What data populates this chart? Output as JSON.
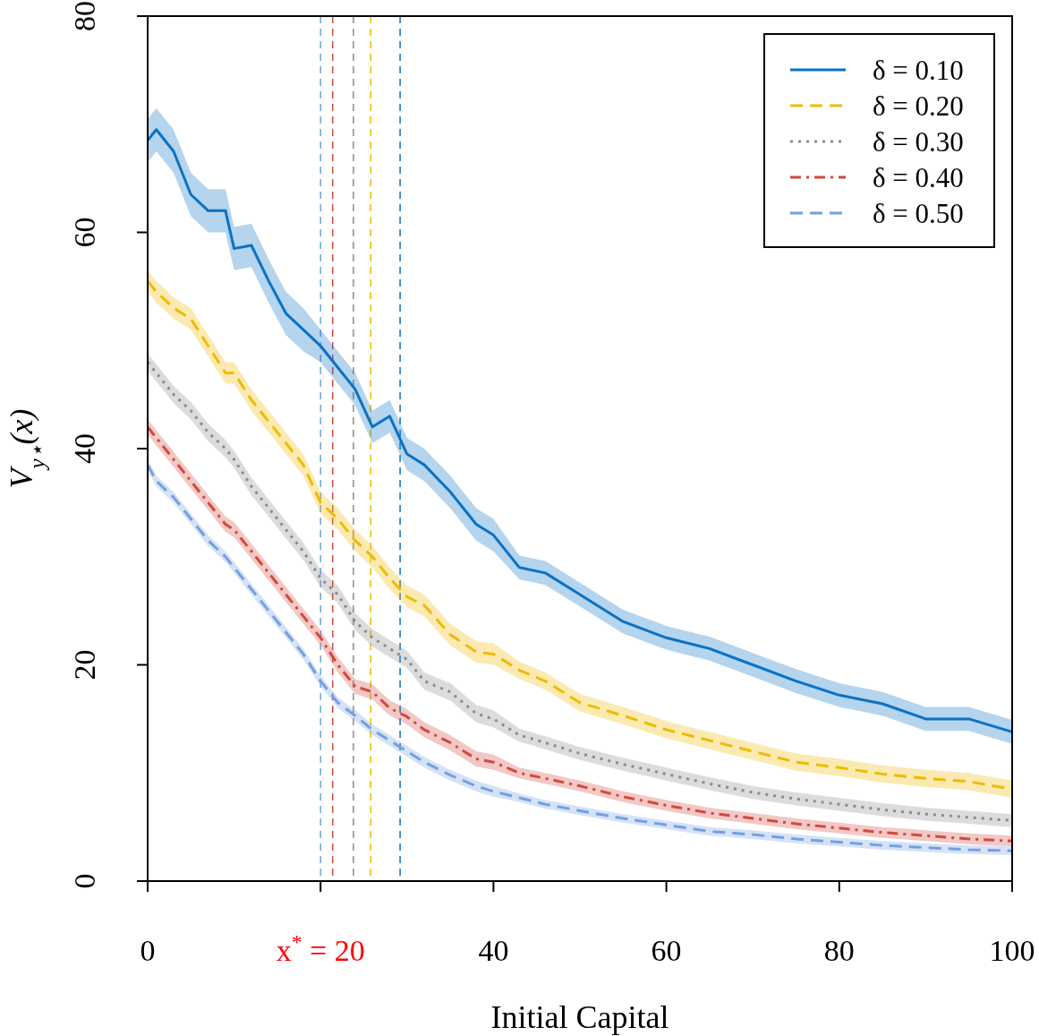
{
  "chart_data": {
    "type": "line",
    "xlabel": "Initial Capital",
    "ylabel": "V$_{y⋆}$(x)",
    "x": [
      0,
      1,
      3,
      5,
      7,
      9,
      10,
      12,
      14,
      16,
      18,
      20,
      22,
      24,
      26,
      28,
      30,
      32,
      35,
      38,
      40,
      43,
      46,
      50,
      55,
      60,
      65,
      70,
      75,
      80,
      85,
      90,
      95,
      100
    ],
    "xlim": [
      0,
      100
    ],
    "xticks": [
      0,
      {
        "value": 20,
        "label": "x$^{*}$ = 20"
      },
      40,
      60,
      80,
      100
    ],
    "ylim": [
      0,
      80
    ],
    "yticks": [
      0,
      20,
      40,
      60,
      80
    ],
    "legend": "top right",
    "grid": false,
    "series": [
      {
        "name": "δ = 0.10",
        "color": "#0a72c4",
        "line_style": "solid",
        "values": [
          68.5,
          69.5,
          67.5,
          63.5,
          62,
          62,
          58.5,
          58.8,
          55.5,
          52.5,
          51,
          49.5,
          47.5,
          45.5,
          42,
          43,
          39.5,
          38.5,
          36,
          33,
          32,
          29,
          28.5,
          26.5,
          24,
          22.5,
          21.5,
          20,
          18.5,
          17.2,
          16.4,
          15,
          15,
          13.8
        ],
        "lower": [
          66.5,
          67.5,
          65.5,
          61.5,
          60,
          60,
          56.5,
          56.8,
          53.5,
          50.5,
          49,
          48,
          46,
          44,
          40.5,
          41.5,
          38,
          37,
          34.5,
          31.5,
          30.5,
          27.9,
          27.4,
          25.4,
          22.9,
          21.4,
          20.4,
          18.9,
          17.4,
          16.1,
          15.3,
          13.9,
          13.9,
          12.7
        ],
        "upper": [
          70.5,
          71.5,
          69.5,
          65.5,
          64,
          64,
          60.5,
          60.8,
          57.5,
          54.5,
          53,
          51,
          49,
          47,
          43.5,
          44.5,
          41,
          40,
          37.5,
          34.5,
          33.5,
          30.1,
          29.6,
          27.6,
          25.1,
          23.6,
          22.6,
          21.1,
          19.6,
          18.3,
          17.5,
          16.1,
          16.1,
          14.9
        ]
      },
      {
        "name": "δ = 0.20",
        "color": "#eebb00",
        "line_style": "dashed",
        "values": [
          55.5,
          54.5,
          53,
          52,
          49.5,
          47,
          47,
          44.5,
          42.5,
          40.5,
          38.5,
          35,
          33.5,
          31.5,
          30,
          28,
          26.3,
          25.5,
          22.8,
          21.2,
          21,
          19.5,
          18.5,
          16.5,
          15.3,
          14,
          13,
          12,
          11,
          10.5,
          9.9,
          9.5,
          9.2,
          8.5
        ],
        "lower": [
          54.5,
          53.5,
          52,
          51,
          48.5,
          46,
          46,
          43.5,
          41.5,
          39.5,
          37.5,
          34,
          32.5,
          30.5,
          29,
          27,
          25.3,
          24.5,
          21.8,
          20.2,
          20,
          18.7,
          17.7,
          15.7,
          14.5,
          13.2,
          12.2,
          11.2,
          10.2,
          9.7,
          9.1,
          8.7,
          8.4,
          7.7
        ],
        "upper": [
          56.5,
          55.5,
          54,
          53,
          50.5,
          48,
          48,
          45.5,
          43.5,
          41.5,
          39.5,
          36,
          34.5,
          32.5,
          31,
          29,
          27.3,
          26.5,
          23.8,
          22.2,
          22,
          20.3,
          19.3,
          17.3,
          16.1,
          14.8,
          13.8,
          12.8,
          11.8,
          11.3,
          10.7,
          10.3,
          10,
          9.3
        ]
      },
      {
        "name": "δ = 0.30",
        "color": "#8c8c8c",
        "line_style": "dotted",
        "values": [
          48,
          47,
          45,
          43.5,
          41.5,
          40,
          39,
          36.5,
          34.5,
          32.5,
          30.5,
          28,
          26.5,
          24,
          22.5,
          21.5,
          20.5,
          18.5,
          17.5,
          15.5,
          15,
          13.5,
          12.8,
          11.8,
          10.8,
          9.9,
          9,
          8.2,
          7.6,
          7.1,
          6.6,
          6.2,
          5.9,
          5.6
        ],
        "lower": [
          47.2,
          46.2,
          44.2,
          42.7,
          40.7,
          39.2,
          38.2,
          35.7,
          33.7,
          31.7,
          29.7,
          27.2,
          25.7,
          23.2,
          21.7,
          20.7,
          19.7,
          17.7,
          16.7,
          14.7,
          14.2,
          12.9,
          12.2,
          11.2,
          10.2,
          9.3,
          8.4,
          7.6,
          7,
          6.5,
          6,
          5.6,
          5.3,
          5
        ],
        "upper": [
          48.8,
          47.8,
          45.8,
          44.3,
          42.3,
          40.8,
          39.8,
          37.3,
          35.3,
          33.3,
          31.3,
          28.8,
          27.3,
          24.8,
          23.3,
          22.3,
          21.3,
          19.3,
          18.3,
          16.3,
          15.8,
          14.1,
          13.4,
          12.4,
          11.4,
          10.5,
          9.6,
          8.8,
          8.2,
          7.7,
          7.2,
          6.8,
          6.5,
          6.2
        ]
      },
      {
        "name": "δ = 0.40",
        "color": "#d04a3f",
        "line_style": "dashdot",
        "values": [
          42,
          41,
          39,
          37,
          35,
          33,
          32.5,
          30.5,
          28.5,
          26.5,
          24.5,
          22.5,
          20,
          18,
          17.5,
          16,
          15.2,
          14,
          12.8,
          11.3,
          11,
          10,
          9.5,
          8.8,
          7.8,
          7,
          6.3,
          5.8,
          5.3,
          4.9,
          4.5,
          4.2,
          3.9,
          3.7
        ],
        "lower": [
          41.3,
          40.3,
          38.3,
          36.3,
          34.3,
          32.3,
          31.8,
          29.8,
          27.8,
          25.8,
          23.8,
          21.8,
          19.3,
          17.3,
          16.8,
          15.3,
          14.5,
          13.3,
          12.1,
          10.6,
          10.3,
          9.5,
          9,
          8.3,
          7.3,
          6.5,
          5.8,
          5.3,
          4.8,
          4.4,
          4,
          3.7,
          3.4,
          3.2
        ],
        "upper": [
          42.7,
          41.7,
          39.7,
          37.7,
          35.7,
          33.7,
          33.2,
          31.2,
          29.2,
          27.2,
          25.2,
          23.2,
          20.7,
          18.7,
          18.2,
          16.7,
          15.9,
          14.7,
          13.5,
          12,
          11.7,
          10.5,
          10,
          9.3,
          8.3,
          7.5,
          6.8,
          6.3,
          5.8,
          5.4,
          5,
          4.7,
          4.4,
          4.2
        ]
      },
      {
        "name": "δ = 0.50",
        "color": "#73a0e0",
        "line_style": "dashed",
        "values": [
          38.5,
          37,
          35.5,
          33.5,
          31.5,
          30,
          29,
          27,
          25,
          23,
          21,
          18.5,
          16.5,
          15.3,
          14,
          13,
          12,
          11,
          9.8,
          8.8,
          8.3,
          7.7,
          7.1,
          6.5,
          5.8,
          5.2,
          4.6,
          4.3,
          3.9,
          3.6,
          3.3,
          3.1,
          2.9,
          2.8
        ],
        "lower": [
          38,
          36.5,
          35,
          33,
          31,
          29.5,
          28.5,
          26.5,
          24.5,
          22.5,
          20.5,
          18,
          16,
          14.8,
          13.5,
          12.5,
          11.5,
          10.5,
          9.3,
          8.3,
          7.8,
          7.3,
          6.7,
          6.1,
          5.4,
          4.8,
          4.2,
          3.9,
          3.5,
          3.2,
          2.9,
          2.7,
          2.5,
          2.4
        ],
        "upper": [
          39,
          37.5,
          36,
          34,
          32,
          30.5,
          29.5,
          27.5,
          25.5,
          23.5,
          21.5,
          19,
          17,
          15.8,
          14.5,
          13.5,
          12.5,
          11.5,
          10.3,
          9.3,
          8.8,
          8.1,
          7.5,
          6.9,
          6.2,
          5.6,
          5,
          4.7,
          4.3,
          4,
          3.7,
          3.5,
          3.3,
          3.2
        ]
      }
    ],
    "ref_lines": [
      {
        "axis": "x",
        "value": 20,
        "color": "#73a0e0",
        "line_style": "dashed"
      },
      {
        "axis": "x",
        "value": 21.4,
        "color": "#d04a3f",
        "line_style": "dashed"
      },
      {
        "axis": "x",
        "value": 23.8,
        "color": "#8c8c8c",
        "line_style": "dashed"
      },
      {
        "axis": "x",
        "value": 25.8,
        "color": "#eebb00",
        "line_style": "dashed"
      },
      {
        "axis": "x",
        "value": 29.2,
        "color": "#0a72c4",
        "line_style": "dashed"
      }
    ]
  }
}
